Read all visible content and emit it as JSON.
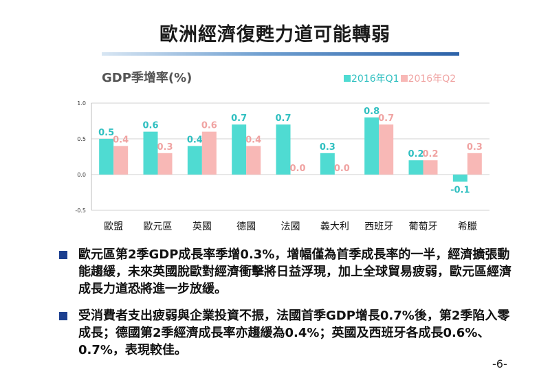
{
  "slide": {
    "title": "歐洲經濟復甦力道可能轉弱",
    "page_number": "-6-"
  },
  "colors": {
    "q1": "#4fdbd2",
    "q2": "#f8b8b6",
    "q1_label": "#2fbfc0",
    "q2_label": "#f0a3a2",
    "bullet": "#1c3f8f"
  },
  "chart_data": {
    "type": "bar",
    "title": "GDP季增率(%)",
    "categories": [
      "歐盟",
      "歐元區",
      "英國",
      "德國",
      "法國",
      "義大利",
      "西班牙",
      "葡萄牙",
      "希臘"
    ],
    "series": [
      {
        "name": "2016年Q1",
        "values": [
          0.5,
          0.6,
          0.4,
          0.7,
          0.7,
          0.3,
          0.8,
          0.2,
          -0.1
        ]
      },
      {
        "name": "2016年Q2",
        "values": [
          0.4,
          0.3,
          0.6,
          0.4,
          0.0,
          0.0,
          0.7,
          0.2,
          0.3
        ]
      }
    ],
    "data_labels": [
      [
        "0.5",
        "0.6",
        "0.4",
        "0.7",
        "0.7",
        "0.3",
        "0.8",
        "0.2",
        "-0.1"
      ],
      [
        "0.4",
        "0.3",
        "0.6",
        "0.4",
        "0.0",
        "0.0",
        "0.7",
        "0.2",
        "0.3"
      ]
    ],
    "ylim": [
      -0.5,
      1.0
    ],
    "yticks": [
      "1.0",
      "0.5",
      "0.0",
      "-0.5"
    ],
    "ytick_values": [
      1.0,
      0.5,
      0.0,
      -0.5
    ],
    "grid": "horizontal",
    "legend_position": "top-right"
  },
  "bullets": [
    {
      "text": "歐元區第2季GDP成長率季增0.3%，增幅僅為首季成長率的一半，經濟擴張動能趨緩，未來英國脫歐對經濟衝擊將日益浮現，加上全球貿易疲弱，歐元區經濟成長力道恐將進一步放緩。"
    },
    {
      "text": "受消費者支出疲弱與企業投資不振，法國首季GDP增長0.7%後，第2季陷入零成長；德國第2季經濟成長率亦趨緩為0.4%；英國及西班牙各成長0.6%、0.7%，表現較佳。"
    }
  ]
}
